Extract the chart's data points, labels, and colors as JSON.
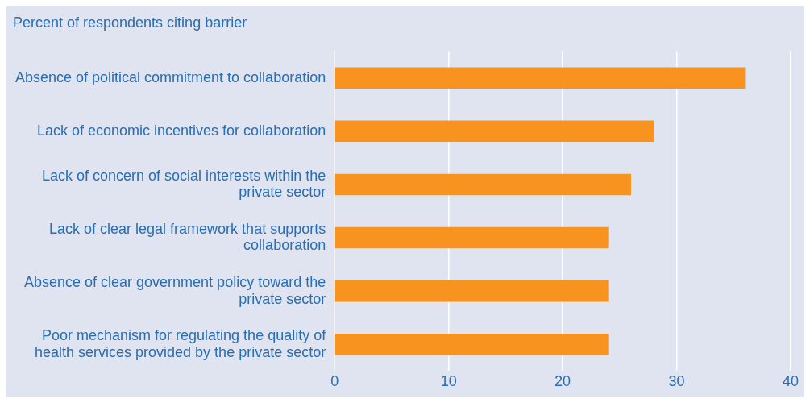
{
  "chart_data": {
    "type": "bar",
    "orientation": "horizontal",
    "title": "Percent of respondents citing barrier",
    "categories": [
      "Absence of political commitment to collaboration",
      "Lack of economic incentives for collaboration",
      "Lack of concern of social interests within the private sector",
      "Lack of clear legal framework that supports collaboration",
      "Absence of clear government policy toward the private sector",
      "Poor mechanism for regulating the quality of health services provided by the private sector"
    ],
    "values": [
      36,
      28,
      26,
      24,
      24,
      24
    ],
    "color": "#f7931e",
    "xlim": [
      0,
      40
    ],
    "xticks": [
      0,
      10,
      20,
      30,
      40
    ],
    "grid": "x",
    "legend": false
  }
}
